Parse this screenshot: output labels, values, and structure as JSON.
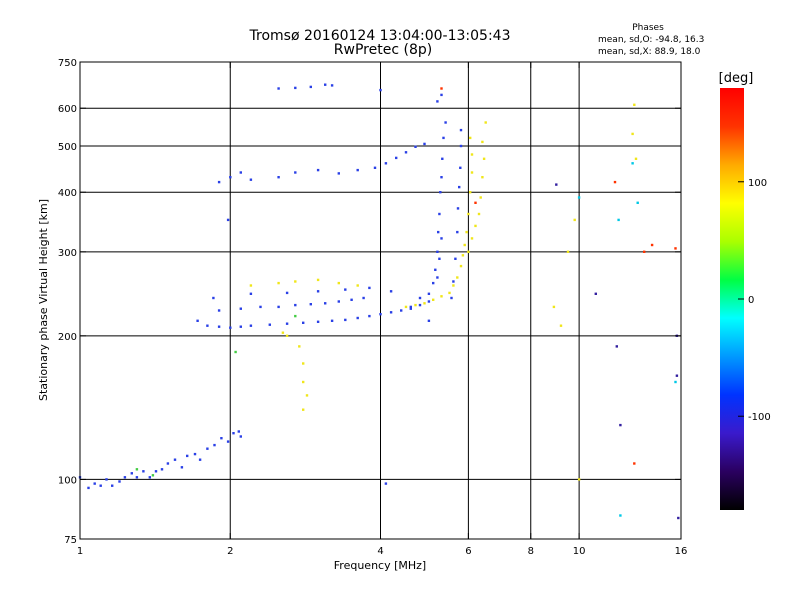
{
  "chart_data": {
    "type": "scatter",
    "title": "Tromsø 20160124 13:04:00-13:05:43",
    "subtitle": "RwPretec (8p)",
    "xlabel": "Frequency [MHz]",
    "ylabel": "Stationary phase Virtual Height [km]",
    "x_scale": "log",
    "y_scale": "log",
    "xlim": [
      1,
      16
    ],
    "ylim": [
      75,
      750
    ],
    "x_ticks": [
      1,
      2,
      4,
      6,
      8,
      10,
      16
    ],
    "x_ticklabels": [
      "1",
      "2",
      "4",
      "6",
      "8",
      "10",
      "16"
    ],
    "y_ticks": [
      75,
      100,
      200,
      300,
      400,
      500,
      600,
      750
    ],
    "y_ticklabels": [
      "75",
      "100",
      "200",
      "300",
      "400",
      "500",
      "600",
      "750"
    ],
    "x_gridlines": [
      2,
      4,
      6,
      8,
      10
    ],
    "y_gridlines": [
      100,
      200,
      300,
      400,
      500,
      600
    ],
    "grid": true,
    "legend": {
      "title": "Phases",
      "lines": [
        "mean, sd,O: -94.8, 16.3",
        "mean, sd,X:  88.9, 18.0"
      ],
      "placement": "top-right"
    },
    "colorbar": {
      "label": "[deg]",
      "range": [
        -180,
        180
      ],
      "ticks": [
        100,
        0,
        -100
      ],
      "ticklabels": [
        "100",
        "0",
        "-100"
      ],
      "colormap": [
        "#000000",
        "#2a0060",
        "#3a1acc",
        "#0033ff",
        "#0099ff",
        "#00ffff",
        "#00ff44",
        "#aaff00",
        "#ffff00",
        "#ffaa00",
        "#ff3300",
        "#ff0000"
      ]
    },
    "series": [
      {
        "color": "#2a40e6",
        "phase_deg": -95,
        "points": [
          [
            1.0,
            101
          ],
          [
            1.04,
            96
          ],
          [
            1.07,
            98
          ],
          [
            1.1,
            97
          ],
          [
            1.13,
            100
          ],
          [
            1.16,
            97
          ],
          [
            1.2,
            99
          ],
          [
            1.23,
            101
          ],
          [
            1.27,
            103
          ],
          [
            1.3,
            101
          ],
          [
            1.34,
            104
          ],
          [
            1.38,
            101
          ],
          [
            1.42,
            104
          ],
          [
            1.46,
            105
          ],
          [
            1.5,
            108
          ],
          [
            1.55,
            110
          ],
          [
            1.6,
            106
          ],
          [
            1.64,
            112
          ],
          [
            1.7,
            113
          ],
          [
            1.74,
            110
          ],
          [
            1.8,
            116
          ],
          [
            1.86,
            118
          ],
          [
            1.92,
            122
          ],
          [
            1.98,
            120
          ],
          [
            2.03,
            125
          ],
          [
            2.08,
            126
          ],
          [
            2.1,
            123
          ],
          [
            1.72,
            215
          ],
          [
            1.8,
            210
          ],
          [
            1.9,
            209
          ],
          [
            2.0,
            208
          ],
          [
            2.1,
            209
          ],
          [
            2.2,
            210
          ],
          [
            2.4,
            211
          ],
          [
            2.6,
            212
          ],
          [
            2.8,
            213
          ],
          [
            3.0,
            214
          ],
          [
            3.2,
            215
          ],
          [
            3.4,
            216
          ],
          [
            3.6,
            218
          ],
          [
            3.8,
            220
          ],
          [
            4.0,
            222
          ],
          [
            4.2,
            224
          ],
          [
            4.4,
            226
          ],
          [
            4.6,
            228
          ],
          [
            4.8,
            232
          ],
          [
            5.0,
            236
          ],
          [
            1.9,
            226
          ],
          [
            2.1,
            228
          ],
          [
            2.3,
            230
          ],
          [
            2.5,
            230
          ],
          [
            2.7,
            232
          ],
          [
            2.9,
            233
          ],
          [
            3.1,
            234
          ],
          [
            3.3,
            236
          ],
          [
            3.5,
            238
          ],
          [
            3.7,
            240
          ],
          [
            1.85,
            240
          ],
          [
            2.2,
            245
          ],
          [
            2.6,
            246
          ],
          [
            3.0,
            248
          ],
          [
            3.4,
            250
          ],
          [
            3.8,
            252
          ],
          [
            4.2,
            248
          ],
          [
            5.0,
            245
          ],
          [
            5.1,
            258
          ],
          [
            5.15,
            275
          ],
          [
            5.2,
            300
          ],
          [
            5.22,
            330
          ],
          [
            5.25,
            360
          ],
          [
            5.27,
            400
          ],
          [
            5.3,
            430
          ],
          [
            5.32,
            470
          ],
          [
            5.35,
            520
          ],
          [
            5.4,
            560
          ],
          [
            5.2,
            265
          ],
          [
            5.25,
            290
          ],
          [
            5.3,
            320
          ],
          [
            5.55,
            240
          ],
          [
            5.6,
            260
          ],
          [
            5.65,
            290
          ],
          [
            5.7,
            330
          ],
          [
            5.72,
            370
          ],
          [
            5.75,
            410
          ],
          [
            5.78,
            450
          ],
          [
            5.8,
            500
          ],
          [
            5.8,
            540
          ],
          [
            1.9,
            420
          ],
          [
            2.0,
            430
          ],
          [
            2.1,
            440
          ],
          [
            2.2,
            425
          ],
          [
            2.5,
            430
          ],
          [
            2.7,
            440
          ],
          [
            3.0,
            445
          ],
          [
            3.3,
            438
          ],
          [
            3.6,
            445
          ],
          [
            3.9,
            450
          ],
          [
            4.1,
            460
          ],
          [
            4.3,
            472
          ],
          [
            4.5,
            485
          ],
          [
            4.7,
            498
          ],
          [
            4.9,
            505
          ],
          [
            2.5,
            660
          ],
          [
            2.7,
            662
          ],
          [
            2.9,
            665
          ],
          [
            3.1,
            672
          ],
          [
            3.2,
            670
          ],
          [
            5.3,
            640
          ],
          [
            5.2,
            620
          ],
          [
            4.0,
            655
          ],
          [
            4.1,
            98
          ],
          [
            1.98,
            350
          ],
          [
            4.8,
            240
          ],
          [
            4.6,
            230
          ],
          [
            5.0,
            215
          ]
        ]
      },
      {
        "color": "#f0e61a",
        "phase_deg": 90,
        "points": [
          [
            4.5,
            230
          ],
          [
            4.7,
            232
          ],
          [
            4.9,
            234
          ],
          [
            5.1,
            238
          ],
          [
            5.3,
            242
          ],
          [
            5.5,
            246
          ],
          [
            5.6,
            255
          ],
          [
            5.7,
            265
          ],
          [
            5.8,
            280
          ],
          [
            5.85,
            295
          ],
          [
            5.9,
            310
          ],
          [
            5.95,
            330
          ],
          [
            6.0,
            360
          ],
          [
            6.05,
            400
          ],
          [
            6.1,
            440
          ],
          [
            6.1,
            480
          ],
          [
            6.05,
            520
          ],
          [
            6.0,
            300
          ],
          [
            6.1,
            320
          ],
          [
            6.2,
            340
          ],
          [
            6.3,
            360
          ],
          [
            6.35,
            390
          ],
          [
            6.4,
            430
          ],
          [
            6.45,
            470
          ],
          [
            6.4,
            510
          ],
          [
            6.5,
            560
          ],
          [
            2.2,
            255
          ],
          [
            2.5,
            258
          ],
          [
            2.7,
            260
          ],
          [
            3.0,
            262
          ],
          [
            3.3,
            258
          ],
          [
            3.6,
            255
          ],
          [
            2.6,
            200
          ],
          [
            2.55,
            203
          ],
          [
            2.75,
            190
          ],
          [
            2.8,
            175
          ],
          [
            2.8,
            160
          ],
          [
            2.85,
            150
          ],
          [
            2.8,
            140
          ],
          [
            8.9,
            230
          ],
          [
            9.2,
            210
          ],
          [
            9.5,
            300
          ],
          [
            9.8,
            350
          ],
          [
            10.0,
            100
          ],
          [
            12.8,
            530
          ],
          [
            12.9,
            610
          ],
          [
            13.0,
            470
          ]
        ]
      },
      {
        "color": "#44cc44",
        "phase_deg": 20,
        "points": [
          [
            1.3,
            105
          ],
          [
            1.4,
            102
          ],
          [
            2.05,
            185
          ],
          [
            2.7,
            220
          ]
        ]
      },
      {
        "color": "#ff3300",
        "phase_deg": 160,
        "points": [
          [
            5.3,
            660
          ],
          [
            6.2,
            380
          ],
          [
            13.5,
            300
          ],
          [
            14.0,
            310
          ],
          [
            15.6,
            305
          ],
          [
            11.8,
            420
          ],
          [
            12.9,
            108
          ]
        ]
      },
      {
        "color": "#00c8e6",
        "phase_deg": -20,
        "points": [
          [
            12.0,
            350
          ],
          [
            12.8,
            460
          ],
          [
            13.1,
            380
          ],
          [
            12.1,
            84
          ],
          [
            15.6,
            160
          ],
          [
            10.0,
            390
          ]
        ]
      },
      {
        "color": "#3320a0",
        "phase_deg": -140,
        "points": [
          [
            9.0,
            415
          ],
          [
            10.8,
            245
          ],
          [
            11.9,
            190
          ],
          [
            15.7,
            165
          ],
          [
            15.8,
            83
          ],
          [
            15.7,
            200
          ],
          [
            12.1,
            130
          ]
        ]
      }
    ]
  }
}
